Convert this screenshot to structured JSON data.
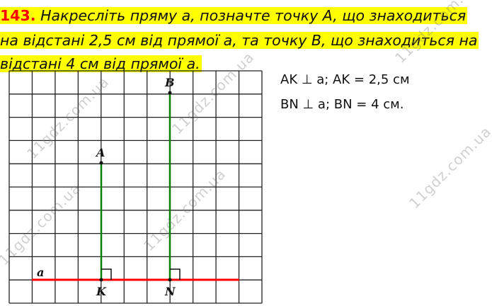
{
  "task": {
    "number": "143.",
    "lines": [
      "Накресліть пряму a, позначте точку A, що знаходиться",
      "на відстані 2,5 см від прямої a, та точку B, що знаходиться на",
      "відстані 4 см від прямої a."
    ]
  },
  "figure": {
    "labels": {
      "line": "a",
      "A": "A",
      "B": "B",
      "K": "K",
      "N": "N"
    },
    "colors": {
      "line_a": "#ff0000",
      "perpendiculars": "#008000",
      "grid": "#222222"
    }
  },
  "answer": {
    "lines": [
      "AK ⊥ a; AK = 2,5 см",
      "BN ⊥ a; BN = 4 см."
    ]
  },
  "watermark": "11gdz.com.ua"
}
